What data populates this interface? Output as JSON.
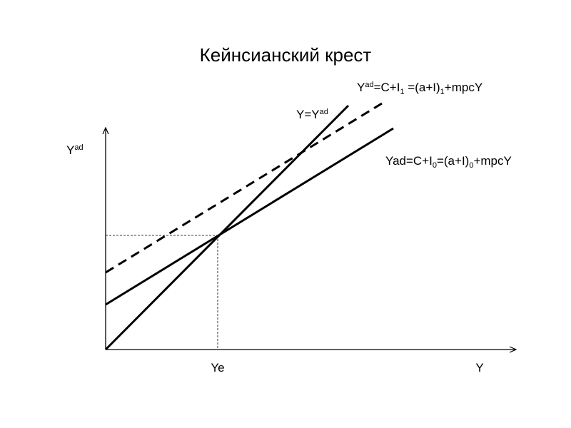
{
  "title": "Кейнсианский крест",
  "axes": {
    "y_label": [
      "Y",
      "ad"
    ],
    "x_label": "Y",
    "equilibrium_label": "Ye"
  },
  "labels": {
    "identity": [
      "Y=Y",
      "ad"
    ],
    "curve_1": [
      "Y",
      "ad",
      "=C+I",
      "1",
      " =(a+I)",
      "1",
      "+mpcY"
    ],
    "curve_0": [
      "Yad=C+I",
      "0",
      "=(a+I)",
      "0",
      "+mpcY"
    ]
  }
}
